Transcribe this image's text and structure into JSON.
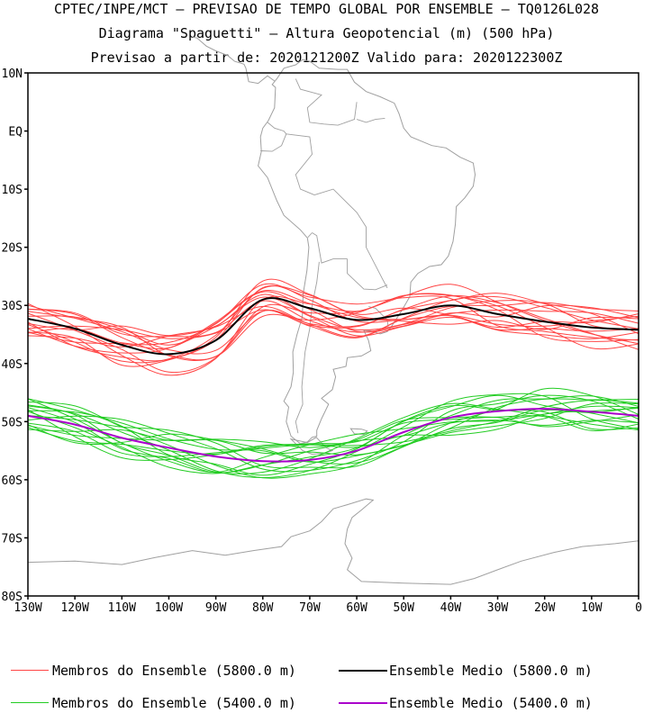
{
  "title": {
    "line1": "CPTEC/INPE/MCT — PREVISAO DE TEMPO GLOBAL POR ENSEMBLE — TQ0126L028",
    "line2": "Diagrama \"Spaguetti\" — Altura Geopotencial (m) (500 hPa)",
    "line3": "Previsao a partir de: 2020121200Z  Valido para: 2020122300Z"
  },
  "axes": {
    "lat_labels": [
      "10N",
      "EQ",
      "10S",
      "20S",
      "30S",
      "40S",
      "50S",
      "60S",
      "70S",
      "80S"
    ],
    "lon_labels": [
      "130W",
      "120W",
      "110W",
      "100W",
      "90W",
      "80W",
      "70W",
      "60W",
      "50W",
      "40W",
      "30W",
      "20W",
      "10W",
      "0"
    ]
  },
  "colors": {
    "member_5800": "#ff4444",
    "mean_5800": "#000000",
    "member_5400": "#22cc22",
    "mean_5400": "#aa00cc",
    "coast": "#a0a0a0"
  },
  "legend": {
    "member_5800": "Membros do Ensemble (5800.0 m)",
    "mean_5800": "Ensemble Medio (5800.0 m)",
    "member_5400": "Membros do Ensemble (5400.0 m)",
    "mean_5400": "Ensemble Medio (5400.0 m)"
  }
}
